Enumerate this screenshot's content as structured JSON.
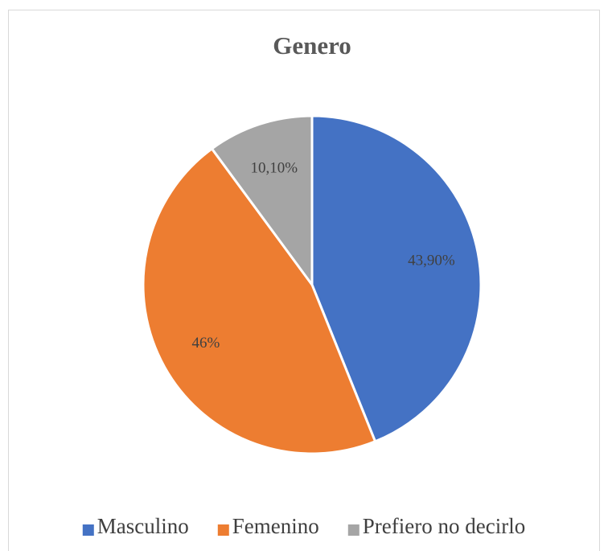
{
  "chart_data": {
    "type": "pie",
    "title": "Genero",
    "categories": [
      "Masculino",
      "Femenino",
      "Prefiero no decirlo"
    ],
    "values": [
      43.9,
      46,
      10.1
    ],
    "value_labels": [
      "43,90%",
      "46%",
      "10,10%"
    ],
    "colors": [
      "#4472c4",
      "#ed7d31",
      "#a5a5a5"
    ],
    "legend": "bottom"
  }
}
